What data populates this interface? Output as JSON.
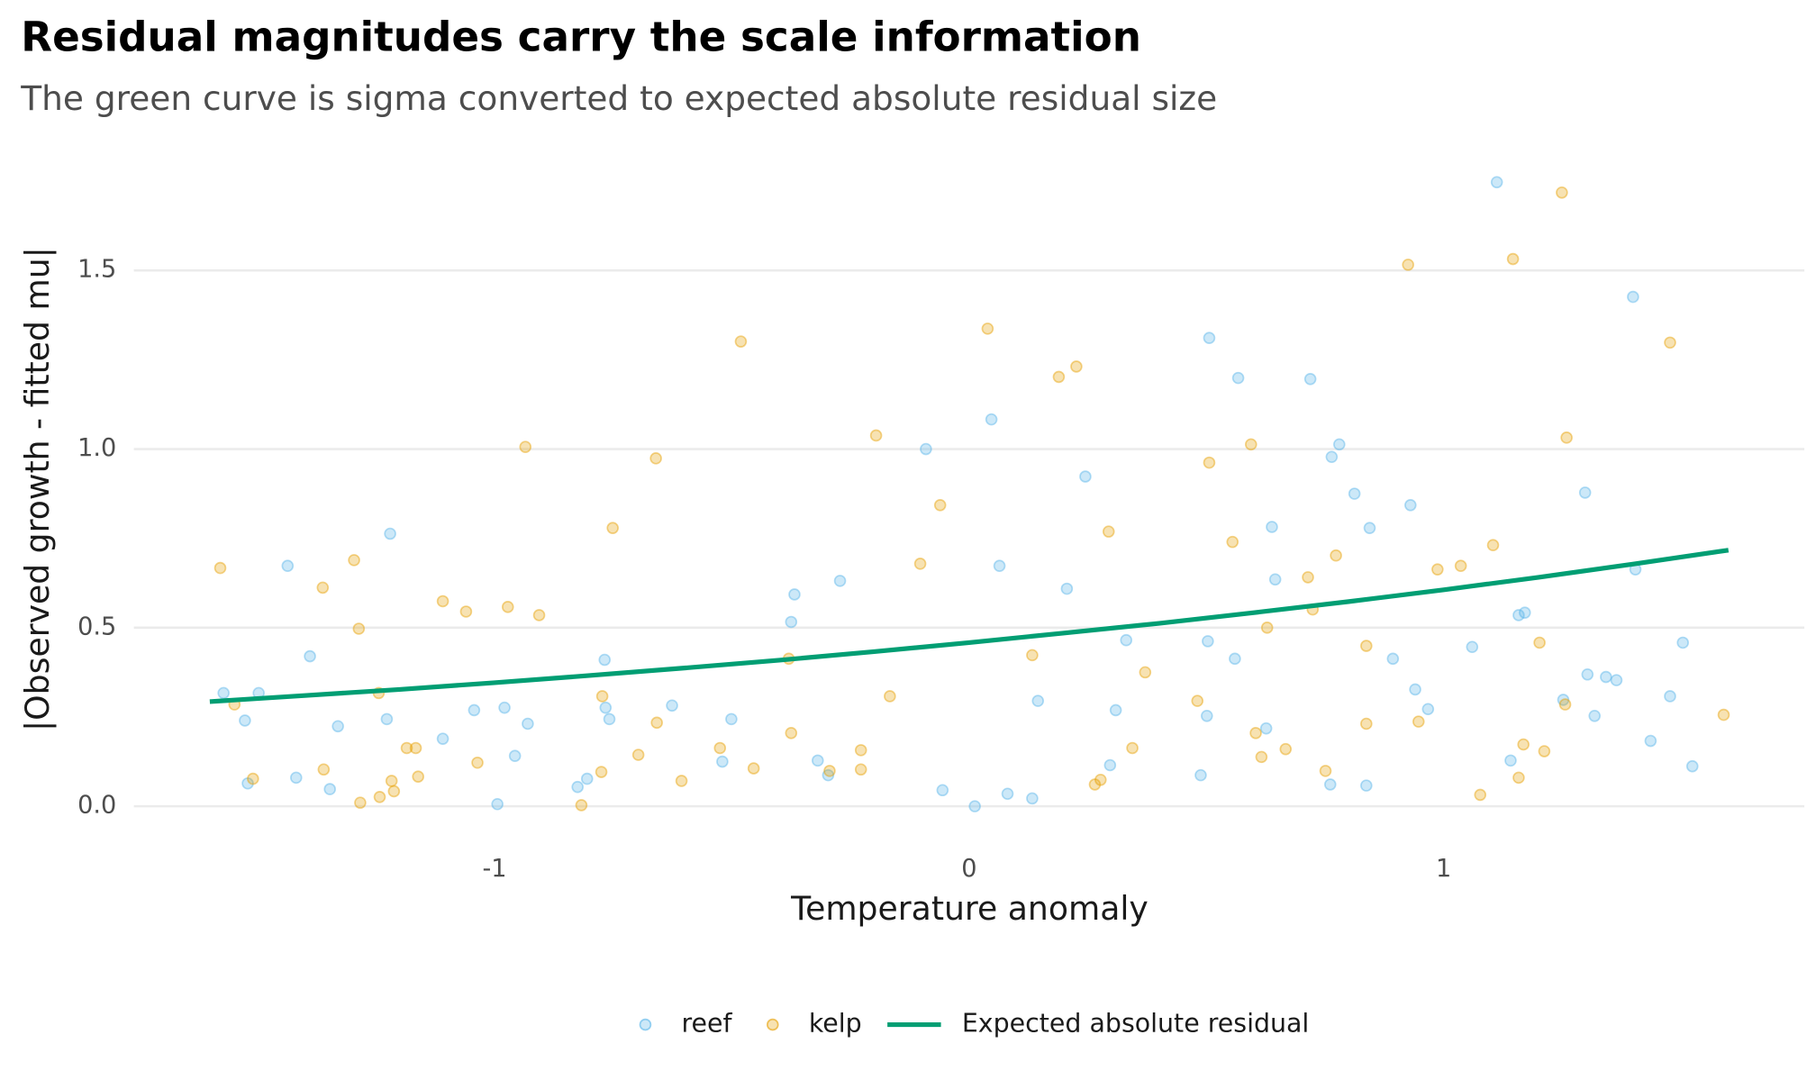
{
  "chart_data": {
    "type": "scatter",
    "title": "Residual magnitudes carry the scale information",
    "subtitle": "The green curve is sigma converted to expected absolute residual size",
    "x_label": "Temperature anomaly",
    "y_label": "|Observed growth - fitted mu|",
    "xlim": [
      -1.76,
      1.76
    ],
    "ylim": [
      -0.09,
      1.8
    ],
    "xticks": [
      -1,
      0,
      1
    ],
    "yticks": [
      {
        "value": 0,
        "label": "0.0"
      },
      {
        "value": 0.5,
        "label": "0.5"
      },
      {
        "value": 1,
        "label": "1.0"
      },
      {
        "value": 1.5,
        "label": "1.5"
      }
    ],
    "grid": "y",
    "legend_position": "bottom",
    "series": [
      {
        "name": "reef",
        "color": "#56B4E9",
        "x": [
          -1.571,
          -1.526,
          -1.52,
          -1.497,
          -1.436,
          -1.418,
          -1.389,
          -1.347,
          -1.33,
          -1.227,
          -1.22,
          -1.109,
          -1.043,
          -0.994,
          -0.979,
          -0.957,
          -0.93,
          -0.825,
          -0.805,
          -0.768,
          -0.766,
          -0.758,
          -0.626,
          -0.52,
          -0.501,
          -0.375,
          -0.368,
          -0.319,
          -0.297,
          -0.272,
          -0.091,
          -0.056,
          0.012,
          0.047,
          0.064,
          0.081,
          0.133,
          0.145,
          0.206,
          0.245,
          0.297,
          0.309,
          0.331,
          0.488,
          0.501,
          0.503,
          0.506,
          0.56,
          0.567,
          0.626,
          0.638,
          0.645,
          0.719,
          0.761,
          0.764,
          0.78,
          0.812,
          0.837,
          0.844,
          0.893,
          0.93,
          0.94,
          0.967,
          1.06,
          1.112,
          1.141,
          1.158,
          1.171,
          1.252,
          1.298,
          1.303,
          1.318,
          1.342,
          1.364,
          1.399,
          1.404,
          1.436,
          1.477,
          1.504,
          1.524
        ],
        "values": [
          0.317,
          0.24,
          0.064,
          0.317,
          0.673,
          0.08,
          0.42,
          0.048,
          0.224,
          0.244,
          0.763,
          0.189,
          0.269,
          0.006,
          0.276,
          0.141,
          0.231,
          0.054,
          0.077,
          0.41,
          0.276,
          0.244,
          0.282,
          0.125,
          0.244,
          0.516,
          0.593,
          0.128,
          0.087,
          0.631,
          1.0,
          0.045,
          0.0,
          1.083,
          0.673,
          0.035,
          0.022,
          0.295,
          0.609,
          0.923,
          0.115,
          0.269,
          0.465,
          0.087,
          0.253,
          0.462,
          1.311,
          0.413,
          1.199,
          0.218,
          0.782,
          0.635,
          1.196,
          0.061,
          0.978,
          1.013,
          0.875,
          0.058,
          0.779,
          0.413,
          0.843,
          0.327,
          0.272,
          0.446,
          1.747,
          0.128,
          0.535,
          0.542,
          0.298,
          0.878,
          0.369,
          0.253,
          0.362,
          0.353,
          1.426,
          0.663,
          0.183,
          0.308,
          0.458,
          0.112
        ]
      },
      {
        "name": "kelp",
        "color": "#E69F00",
        "x": [
          -1.578,
          -1.548,
          -1.509,
          -1.362,
          -1.36,
          -1.296,
          -1.286,
          -1.283,
          -1.244,
          -1.242,
          -1.217,
          -1.212,
          -1.185,
          -1.166,
          -1.161,
          -1.109,
          -1.06,
          -1.036,
          -0.972,
          -0.935,
          -0.906,
          -0.817,
          -0.775,
          -0.773,
          -0.751,
          -0.697,
          -0.66,
          -0.658,
          -0.606,
          -0.525,
          -0.481,
          -0.454,
          -0.38,
          -0.375,
          -0.294,
          -0.228,
          -0.228,
          -0.196,
          -0.167,
          -0.103,
          -0.061,
          0.039,
          0.133,
          0.189,
          0.226,
          0.265,
          0.277,
          0.294,
          0.344,
          0.371,
          0.481,
          0.506,
          0.555,
          0.594,
          0.604,
          0.616,
          0.628,
          0.667,
          0.714,
          0.724,
          0.751,
          0.773,
          0.837,
          0.837,
          0.925,
          0.947,
          0.987,
          1.036,
          1.077,
          1.104,
          1.146,
          1.158,
          1.168,
          1.202,
          1.212,
          1.249,
          1.256,
          1.259,
          1.477,
          1.59
        ],
        "values": [
          0.667,
          0.285,
          0.077,
          0.612,
          0.103,
          0.689,
          0.497,
          0.01,
          0.317,
          0.026,
          0.071,
          0.042,
          0.163,
          0.163,
          0.083,
          0.574,
          0.545,
          0.122,
          0.558,
          1.006,
          0.535,
          0.003,
          0.096,
          0.308,
          0.779,
          0.144,
          0.974,
          0.234,
          0.071,
          0.163,
          1.301,
          0.106,
          0.413,
          0.205,
          0.099,
          0.157,
          0.103,
          1.038,
          0.308,
          0.679,
          0.843,
          1.337,
          0.423,
          1.202,
          1.231,
          0.061,
          0.074,
          0.769,
          0.163,
          0.375,
          0.295,
          0.962,
          0.74,
          1.013,
          0.205,
          0.138,
          0.5,
          0.16,
          0.641,
          0.551,
          0.099,
          0.702,
          0.449,
          0.231,
          1.516,
          0.237,
          0.663,
          0.673,
          0.032,
          0.731,
          1.532,
          0.08,
          0.173,
          0.458,
          0.154,
          1.718,
          0.285,
          1.032,
          1.298,
          0.256
        ]
      },
      {
        "name": "Expected absolute residual",
        "type": "line",
        "color": "#009E73",
        "x": [
          -1.6,
          -1.4,
          -1.2,
          -1.0,
          -0.8,
          -0.6,
          -0.4,
          -0.2,
          0,
          0.2,
          0.4,
          0.6,
          0.8,
          1.0,
          1.2,
          1.4,
          1.6
        ],
        "values": [
          0.293,
          0.31,
          0.327,
          0.346,
          0.366,
          0.387,
          0.409,
          0.433,
          0.458,
          0.485,
          0.512,
          0.542,
          0.573,
          0.606,
          0.641,
          0.678,
          0.717
        ]
      }
    ]
  }
}
